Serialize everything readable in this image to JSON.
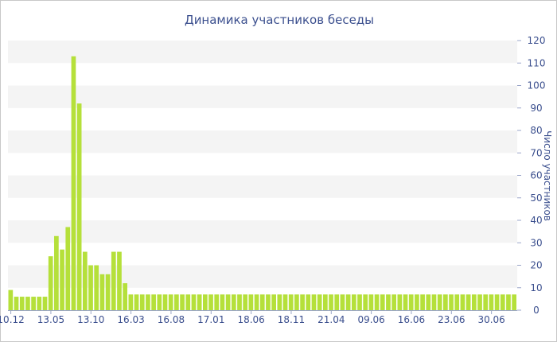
{
  "chart_data": {
    "type": "bar",
    "title": "Динамика участников беседы",
    "xlabel": "",
    "ylabel": "Число участников",
    "ylim": [
      0,
      120
    ],
    "y_ticks": [
      0,
      10,
      20,
      30,
      40,
      50,
      60,
      70,
      80,
      90,
      100,
      110,
      120
    ],
    "y_axis_side": "right",
    "grid": "horizontal alternating bands",
    "bar_color": "#b5e03a",
    "band_color": "#f4f4f4",
    "text_color": "#3b4f8e",
    "values": [
      9,
      6,
      6,
      6,
      6,
      6,
      6,
      24,
      33,
      27,
      37,
      113,
      92,
      26,
      20,
      20,
      16,
      16,
      26,
      26,
      12,
      7,
      7,
      7,
      7,
      7,
      7,
      7,
      7,
      7,
      7,
      7,
      7,
      7,
      7,
      7,
      7,
      7,
      7,
      7,
      7,
      7,
      7,
      7,
      7,
      7,
      7,
      7,
      7,
      7,
      7,
      7,
      7,
      7,
      7,
      7,
      7,
      7,
      7,
      7,
      7,
      7,
      7,
      7,
      7,
      7,
      7,
      7,
      7,
      7,
      7,
      7,
      7,
      7,
      7,
      7,
      7,
      7,
      7,
      7,
      7,
      7,
      7,
      7,
      7,
      7,
      7,
      7,
      7
    ],
    "x_tick_labels": [
      {
        "index": 0,
        "label": "10.12"
      },
      {
        "index": 7,
        "label": "13.05"
      },
      {
        "index": 14,
        "label": "13.10"
      },
      {
        "index": 21,
        "label": "16.03"
      },
      {
        "index": 28,
        "label": "16.08"
      },
      {
        "index": 35,
        "label": "17.01"
      },
      {
        "index": 42,
        "label": "18.06"
      },
      {
        "index": 49,
        "label": "18.11"
      },
      {
        "index": 56,
        "label": "21.04"
      },
      {
        "index": 63,
        "label": "09.06"
      },
      {
        "index": 70,
        "label": "16.06"
      },
      {
        "index": 77,
        "label": "23.06"
      },
      {
        "index": 84,
        "label": "30.06"
      }
    ]
  }
}
